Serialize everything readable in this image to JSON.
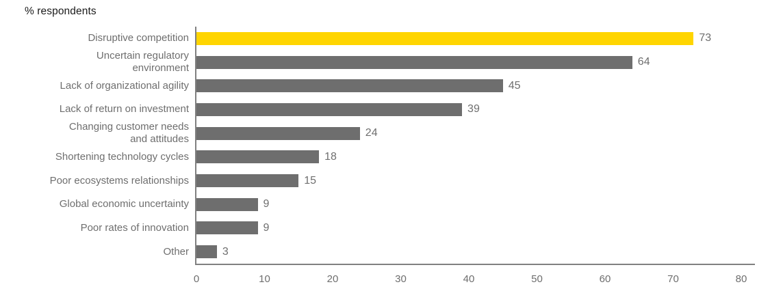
{
  "title": "% respondents",
  "colors": {
    "highlight_bar": "#ffd500",
    "bar": "#6e6e6e",
    "axis_line": "#808080",
    "label_text": "#6e6e6e",
    "title_text": "#1a1a1a"
  },
  "chart_data": {
    "type": "bar",
    "orientation": "horizontal",
    "title": "% respondents",
    "categories": [
      "Disruptive competition",
      "Uncertain regulatory\nenvironment",
      "Lack of organizational agility",
      "Lack of return on investment",
      "Changing customer needs\nand attitudes",
      "Shortening technology cycles",
      "Poor ecosystems relationships",
      "Global economic uncertainty",
      "Poor rates of innovation",
      "Other"
    ],
    "values": [
      73,
      64,
      45,
      39,
      24,
      18,
      15,
      9,
      9,
      3
    ],
    "value_labels": [
      73,
      64,
      45,
      39,
      24,
      18,
      15,
      9,
      9,
      3
    ],
    "highlight_index": 0,
    "xlabel": "",
    "ylabel": "",
    "xlim": [
      0,
      80
    ],
    "xticks": [
      0,
      10,
      20,
      30,
      40,
      50,
      60,
      70,
      80
    ],
    "grid": false,
    "legend": null
  }
}
